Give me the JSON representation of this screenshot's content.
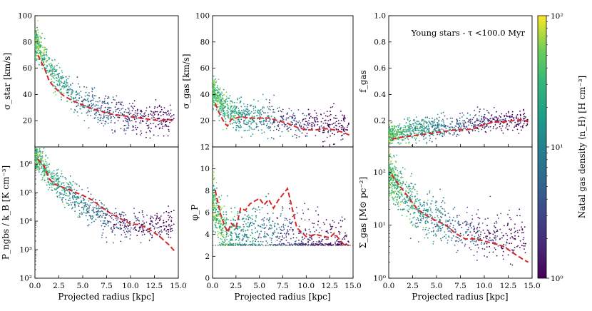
{
  "shared_xlabel": "Projected radius [kpc]",
  "annotation": "Young stars - τ <100.0 Myr",
  "colorbar": {
    "label": "Natal gas density ⟨n_H⟩ [H cm⁻³]",
    "ticks": [
      "10⁰",
      "10¹",
      "10²"
    ],
    "range": [
      1,
      100
    ],
    "scale": "log",
    "colormap": "viridis"
  },
  "colors": {
    "median_line": "#d62728",
    "threshold": "#333333"
  },
  "chart_data": [
    {
      "id": "sigma_star",
      "type": "scatter",
      "ylabel": "σ_star [km/s]",
      "ylim": [
        0,
        100
      ],
      "yscale": "linear",
      "xlim": [
        0,
        15
      ],
      "yticks": [
        20,
        40,
        60,
        80,
        100
      ],
      "ytick_labels": [
        "20",
        "40",
        "60",
        "80",
        "100"
      ],
      "cloud_x": [
        0.1,
        0.3,
        0.6,
        1.0,
        1.5,
        2.0,
        2.5,
        3.0,
        3.5,
        4.0,
        4.5,
        5.0,
        6.0,
        7.0,
        8.0,
        9.5,
        11.0
      ],
      "cloud_y": [
        79,
        77,
        74,
        67,
        60,
        55,
        50,
        46,
        43,
        40,
        37,
        35,
        31,
        28,
        26,
        23,
        21
      ],
      "cloud_spread": 5,
      "n_points": 900,
      "median_line": {
        "x": [
          0.3,
          1.0,
          1.5,
          2.0,
          2.5,
          3.0,
          4.0,
          5.0,
          6.0,
          7.0,
          8.0,
          9.0,
          10.0,
          11.0,
          12.0,
          13.0,
          14.0,
          14.6
        ],
        "y": [
          70,
          60,
          50,
          46,
          42,
          39,
          35,
          32,
          29,
          27,
          25,
          24,
          23,
          22,
          21,
          20,
          21,
          19
        ]
      }
    },
    {
      "id": "sigma_gas",
      "type": "scatter",
      "ylabel": "σ_gas [km/s]",
      "ylim": [
        0,
        100
      ],
      "yscale": "linear",
      "xlim": [
        0,
        15
      ],
      "yticks": [
        20,
        40,
        60,
        80,
        100
      ],
      "ytick_labels": [
        "20",
        "40",
        "60",
        "80",
        "100"
      ],
      "cloud_x": [
        0.1,
        0.5,
        1.0,
        1.5,
        2.0,
        3.0,
        4.0,
        5.0,
        6.0,
        7.0,
        8.0,
        10.0,
        12.0
      ],
      "cloud_y": [
        42,
        38,
        32,
        28,
        26,
        24,
        23,
        22,
        21,
        20,
        19,
        18,
        17
      ],
      "cloud_spread": 5,
      "n_points": 900,
      "median_line": {
        "x": [
          0.3,
          0.7,
          1.0,
          1.3,
          1.6,
          2.0,
          3.0,
          4.0,
          5.0,
          6.0,
          7.0,
          8.0,
          9.0,
          10.0,
          11.0,
          12.0,
          13.0,
          14.0,
          14.6
        ],
        "y": [
          33,
          26,
          22,
          18,
          16,
          21,
          23,
          22,
          22,
          22,
          20,
          18,
          15,
          13,
          13,
          14,
          13,
          11,
          9
        ]
      }
    },
    {
      "id": "f_gas",
      "type": "scatter",
      "ylabel": "f_gas",
      "ylim": [
        0,
        1.0
      ],
      "yscale": "linear",
      "xlim": [
        0,
        15
      ],
      "yticks": [
        0.2,
        0.4,
        0.6,
        0.8,
        1.0
      ],
      "ytick_labels": [
        "0.2",
        "0.4",
        "0.6",
        "0.8",
        "1.0"
      ],
      "cloud_x": [
        0.1,
        1.0,
        2.0,
        3.0,
        4.0,
        5.0,
        6.0,
        7.0,
        8.0,
        9.0,
        10.0,
        11.0,
        12.0
      ],
      "cloud_y": [
        0.1,
        0.11,
        0.12,
        0.13,
        0.14,
        0.15,
        0.15,
        0.16,
        0.17,
        0.18,
        0.19,
        0.2,
        0.2
      ],
      "cloud_spread": 0.035,
      "n_points": 900,
      "median_line": {
        "x": [
          0.3,
          1.0,
          2.0,
          3.0,
          4.0,
          5.0,
          6.0,
          7.0,
          8.0,
          9.0,
          10.0,
          11.0,
          12.0,
          13.0,
          14.0,
          14.6
        ],
        "y": [
          0.06,
          0.07,
          0.08,
          0.09,
          0.1,
          0.11,
          0.12,
          0.13,
          0.13,
          0.14,
          0.17,
          0.19,
          0.19,
          0.2,
          0.21,
          0.19
        ]
      }
    },
    {
      "id": "pressure",
      "type": "scatter",
      "ylabel": "P_ngbs / k_B [K cm⁻³]",
      "ylim": [
        100,
        4000000
      ],
      "yscale": "log",
      "xlim": [
        0,
        15
      ],
      "yticks": [
        100,
        1000,
        10000,
        100000,
        1000000
      ],
      "ytick_labels": [
        "10²",
        "10³",
        "10⁴",
        "10⁵",
        "10⁶"
      ],
      "cloud_x": [
        0.1,
        0.5,
        1.0,
        1.5,
        2.0,
        3.0,
        4.0,
        5.0,
        6.0,
        7.0,
        8.0,
        9.5
      ],
      "cloud_y": [
        2000000,
        1500000,
        700000,
        400000,
        250000,
        120000,
        70000,
        40000,
        25000,
        15000,
        10000,
        7000
      ],
      "cloud_spread": 0.25,
      "n_points": 900,
      "median_line": {
        "x": [
          0.3,
          1.0,
          1.5,
          2.0,
          3.0,
          4.0,
          5.0,
          6.0,
          7.0,
          8.0,
          9.0,
          10.0,
          11.0,
          12.0,
          13.0,
          14.0,
          14.6
        ],
        "y": [
          1500000,
          800000,
          300000,
          200000,
          150000,
          110000,
          80000,
          55000,
          30000,
          18000,
          12000,
          8000,
          7500,
          5000,
          3000,
          1500,
          900
        ]
      }
    },
    {
      "id": "phi_p",
      "type": "scatter",
      "ylabel": "φ_P",
      "ylim": [
        0,
        12
      ],
      "yscale": "linear",
      "xlim": [
        0,
        15
      ],
      "yticks": [
        0,
        2,
        4,
        6,
        8,
        10,
        12
      ],
      "ytick_labels": [
        "0",
        "2",
        "4",
        "6",
        "8",
        "10",
        "12"
      ],
      "cloud_x": [
        0.1,
        0.4,
        0.8,
        1.2,
        2.0,
        3.0,
        4.0,
        5.0,
        6.0,
        7.0,
        8.0,
        9.5,
        11.0,
        12.5
      ],
      "cloud_y": [
        7.0,
        6.0,
        5.0,
        4.2,
        3.9,
        4.0,
        4.2,
        4.3,
        4.2,
        4.0,
        3.9,
        3.5,
        3.3,
        3.2
      ],
      "cloud_spread": 1.0,
      "n_points": 900,
      "floor": 3.0,
      "threshold": 3.0,
      "median_line": {
        "x": [
          0.3,
          0.8,
          1.2,
          1.6,
          2.0,
          2.5,
          3.0,
          3.5,
          4.0,
          5.0,
          5.5,
          6.0,
          6.5,
          7.0,
          8.0,
          9.0,
          10.0,
          11.0,
          12.0,
          12.5,
          13.0,
          14.0,
          14.6
        ],
        "y": [
          8.0,
          6.0,
          5.0,
          4.2,
          5.0,
          4.6,
          6.4,
          6.2,
          6.8,
          7.3,
          6.7,
          7.2,
          6.4,
          7.1,
          8.2,
          4.6,
          3.8,
          4.0,
          3.8,
          3.7,
          4.1,
          3.1,
          3.0
        ]
      }
    },
    {
      "id": "sigma_surface",
      "type": "scatter",
      "ylabel": "Σ_gas [M⊙ pc⁻²]",
      "ylim": [
        1,
        300
      ],
      "yscale": "log",
      "xlim": [
        0,
        15
      ],
      "yticks": [
        1,
        10,
        100
      ],
      "ytick_labels": [
        "10⁰",
        "10¹",
        "10²"
      ],
      "cloud_x": [
        0.1,
        0.5,
        1.0,
        1.5,
        2.0,
        3.0,
        4.0,
        5.0,
        6.0,
        7.0,
        8.0,
        9.0,
        10.5
      ],
      "cloud_y": [
        90,
        70,
        55,
        40,
        30,
        20,
        15,
        12,
        10,
        9,
        8,
        7,
        6
      ],
      "cloud_spread": 0.2,
      "n_points": 900,
      "median_line": {
        "x": [
          0.3,
          1.0,
          2.0,
          3.0,
          4.0,
          5.0,
          6.0,
          7.0,
          8.0,
          9.0,
          10.0,
          11.0,
          12.0,
          13.0,
          14.0,
          14.6
        ],
        "y": [
          90,
          60,
          35,
          20,
          15,
          12,
          10,
          7,
          5.5,
          5.5,
          5,
          4.5,
          4,
          3,
          2.3,
          2
        ]
      }
    }
  ]
}
